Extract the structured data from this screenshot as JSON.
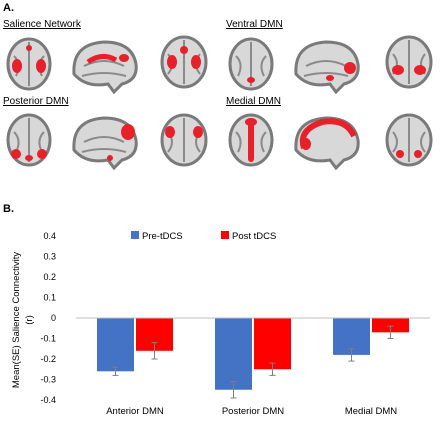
{
  "panel_a": {
    "label": "A.",
    "networks": [
      {
        "title": "Salience Network",
        "icon": "salience-network-brain-slices"
      },
      {
        "title": "Ventral DMN",
        "icon": "ventral-dmn-brain-slices"
      },
      {
        "title": "Posterior DMN",
        "icon": "posterior-dmn-brain-slices"
      },
      {
        "title": "Medial DMN",
        "icon": "medial-dmn-brain-slices"
      }
    ],
    "colors": {
      "brain_gray": "#7a7a7a",
      "brain_light": "#d8d8d8",
      "activation": "#e8202a"
    }
  },
  "panel_b": {
    "label": "B."
  },
  "chart_data": {
    "type": "bar",
    "categories": [
      "Anterior DMN",
      "Posterior DMN",
      "Medial DMN"
    ],
    "series": [
      {
        "name": "Pre-tDCS",
        "values": [
          -0.26,
          -0.35,
          -0.18
        ],
        "errors": [
          0.02,
          0.04,
          0.03
        ],
        "color": "#4472c4"
      },
      {
        "name": "Post tDCS",
        "values": [
          -0.16,
          -0.25,
          -0.07
        ],
        "errors": [
          0.04,
          0.03,
          0.03
        ],
        "color": "#ff0000"
      }
    ],
    "ylim": [
      -0.4,
      0.4
    ],
    "yticks": [
      "0.4",
      "0.3",
      "0.2",
      "0.1",
      "0",
      "-0.1",
      "-0.2",
      "-0.3",
      "-0.4"
    ],
    "ylabel_line1": "Mean(SE) Salience Connectivity",
    "ylabel_line2": "(r)",
    "xlabel": "",
    "legend_position": "top",
    "grid": false
  }
}
